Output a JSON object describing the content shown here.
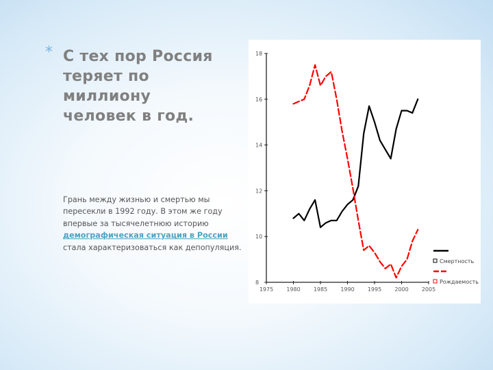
{
  "slide": {
    "bullet": "*",
    "title_lines": [
      "С тех пор Россия",
      "теряет по миллиону",
      "человек в год."
    ],
    "body_before": "Грань между жизнью и смертью мы пересекли в 1992 году. В этом же году впервые за тысячелетнюю историю ",
    "body_link": "демографическая ситуация в России",
    "body_after": " стала характеризоваться как депопуляция."
  },
  "chart_data": {
    "type": "line",
    "title": "",
    "xlabel": "",
    "ylabel": "",
    "xlim": [
      1975,
      2005
    ],
    "ylim": [
      8,
      18
    ],
    "x_ticks": [
      1975,
      1980,
      1985,
      1990,
      1995,
      2000,
      2005
    ],
    "y_ticks": [
      8,
      10,
      12,
      14,
      16,
      18
    ],
    "grid": false,
    "legend_position": "bottom-right",
    "series": [
      {
        "name": "Смертность",
        "color": "#000000",
        "style": "solid",
        "x": [
          1980,
          1981,
          1982,
          1983,
          1984,
          1985,
          1986,
          1987,
          1988,
          1989,
          1990,
          1991,
          1992,
          1993,
          1994,
          1995,
          1996,
          1997,
          1998,
          1999,
          2000,
          2001,
          2002,
          2003
        ],
        "y": [
          10.8,
          11.0,
          10.7,
          11.2,
          11.6,
          10.4,
          10.6,
          10.7,
          10.7,
          11.1,
          11.4,
          11.6,
          12.2,
          14.5,
          15.7,
          15.0,
          14.2,
          13.8,
          13.4,
          14.7,
          15.5,
          15.5,
          15.4,
          16.0
        ]
      },
      {
        "name": "Рождаемость",
        "color": "#ff0000",
        "style": "dashed",
        "x": [
          1980,
          1981,
          1982,
          1983,
          1984,
          1985,
          1986,
          1987,
          1988,
          1989,
          1990,
          1991,
          1992,
          1993,
          1994,
          1995,
          1996,
          1997,
          1998,
          1999,
          2000,
          2001,
          2002,
          2003
        ],
        "y": [
          15.8,
          15.9,
          16.0,
          16.6,
          17.5,
          16.6,
          17.0,
          17.2,
          16.0,
          14.6,
          13.4,
          12.1,
          10.7,
          9.4,
          9.6,
          9.3,
          8.9,
          8.6,
          8.8,
          8.2,
          8.7,
          9.0,
          9.8,
          10.3
        ]
      }
    ]
  }
}
